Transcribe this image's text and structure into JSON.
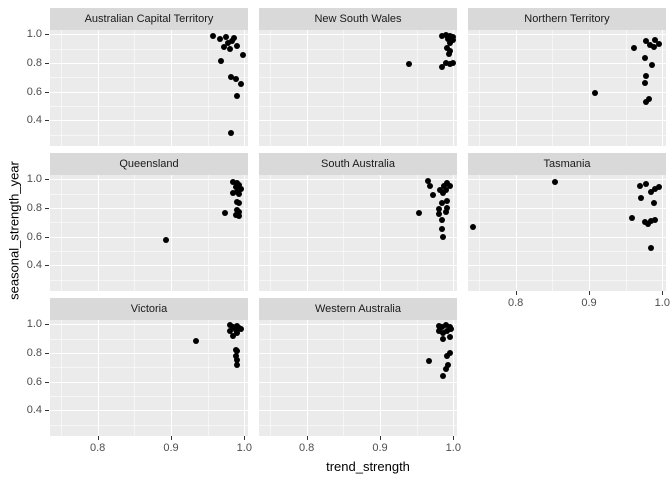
{
  "chart_data": {
    "type": "scatter",
    "title": "",
    "xlabel": "trend_strength",
    "ylabel": "seasonal_strength_year",
    "point_color": "#000000",
    "panel_background": "#ebebeb",
    "strip_background": "#d9d9d9",
    "gridline_color": "#ffffff",
    "grid": true,
    "legend_position": "none",
    "xlim": [
      0.735,
      1.005
    ],
    "ylim": [
      0.22,
      1.03
    ],
    "x_ticks": [
      {
        "value": 0.8,
        "label": "0.8"
      },
      {
        "value": 0.9,
        "label": "0.9"
      },
      {
        "value": 1.0,
        "label": "1.0"
      }
    ],
    "y_ticks": [
      {
        "value": 1.0,
        "label": "1.0"
      },
      {
        "value": 0.8,
        "label": "0.8"
      },
      {
        "value": 0.6,
        "label": "0.6"
      },
      {
        "value": 0.4,
        "label": "0.4"
      }
    ],
    "x_minor_ticks": [
      0.75,
      0.85,
      0.95
    ],
    "y_minor_ticks": [
      0.3,
      0.5,
      0.7,
      0.9
    ],
    "facets": [
      {
        "label": "Australian Capital Territory",
        "row": 0,
        "col": 0,
        "x_axis": false,
        "points": [
          [
            0.957,
            0.99
          ],
          [
            0.967,
            0.965
          ],
          [
            0.975,
            0.98
          ],
          [
            0.978,
            0.94
          ],
          [
            0.983,
            0.955
          ],
          [
            0.986,
            0.975
          ],
          [
            0.972,
            0.91
          ],
          [
            0.981,
            0.9
          ],
          [
            0.99,
            0.915
          ],
          [
            0.998,
            0.855
          ],
          [
            0.968,
            0.815
          ],
          [
            0.982,
            0.7
          ],
          [
            0.988,
            0.685
          ],
          [
            0.995,
            0.65
          ],
          [
            0.99,
            0.57
          ],
          [
            0.982,
            0.31
          ]
        ]
      },
      {
        "label": "New South Wales",
        "row": 0,
        "col": 1,
        "x_axis": false,
        "points": [
          [
            0.985,
            0.99
          ],
          [
            0.99,
            0.995
          ],
          [
            0.995,
            0.99
          ],
          [
            0.999,
            0.98
          ],
          [
            0.993,
            0.97
          ],
          [
            0.999,
            0.963
          ],
          [
            0.996,
            0.94
          ],
          [
            0.992,
            0.905
          ],
          [
            0.996,
            0.885
          ],
          [
            0.994,
            0.86
          ],
          [
            0.99,
            0.8
          ],
          [
            0.995,
            0.79
          ],
          [
            0.999,
            0.8
          ],
          [
            0.985,
            0.77
          ],
          [
            0.94,
            0.79
          ]
        ]
      },
      {
        "label": "Northern Territory",
        "row": 0,
        "col": 2,
        "x_axis": false,
        "points": [
          [
            0.961,
            0.905
          ],
          [
            0.978,
            0.955
          ],
          [
            0.983,
            0.928
          ],
          [
            0.99,
            0.96
          ],
          [
            0.996,
            0.933
          ],
          [
            0.989,
            0.911
          ],
          [
            0.976,
            0.836
          ],
          [
            0.986,
            0.785
          ],
          [
            0.978,
            0.708
          ],
          [
            0.976,
            0.66
          ],
          [
            0.908,
            0.587
          ],
          [
            0.978,
            0.527
          ],
          [
            0.982,
            0.549
          ]
        ]
      },
      {
        "label": "Queensland",
        "row": 1,
        "col": 0,
        "x_axis": false,
        "points": [
          [
            0.985,
            0.98
          ],
          [
            0.99,
            0.973
          ],
          [
            0.993,
            0.959
          ],
          [
            0.988,
            0.945
          ],
          [
            0.996,
            0.932
          ],
          [
            0.985,
            0.904
          ],
          [
            0.99,
            0.911
          ],
          [
            0.993,
            0.898
          ],
          [
            0.99,
            0.843
          ],
          [
            0.993,
            0.836
          ],
          [
            0.99,
            0.788
          ],
          [
            0.993,
            0.775
          ],
          [
            0.988,
            0.754
          ],
          [
            0.993,
            0.747
          ],
          [
            0.973,
            0.768
          ],
          [
            0.893,
            0.577
          ]
        ]
      },
      {
        "label": "South Australia",
        "row": 1,
        "col": 1,
        "x_axis": false,
        "points": [
          [
            0.965,
            0.985
          ],
          [
            0.968,
            0.955
          ],
          [
            0.982,
            0.923
          ],
          [
            0.987,
            0.955
          ],
          [
            0.991,
            0.974
          ],
          [
            0.995,
            0.95
          ],
          [
            0.99,
            0.927
          ],
          [
            0.986,
            0.905
          ],
          [
            0.972,
            0.893
          ],
          [
            0.984,
            0.836
          ],
          [
            0.991,
            0.847
          ],
          [
            0.981,
            0.795
          ],
          [
            0.991,
            0.802
          ],
          [
            0.953,
            0.767
          ],
          [
            0.981,
            0.76
          ],
          [
            0.99,
            0.771
          ],
          [
            0.985,
            0.716
          ],
          [
            0.984,
            0.652
          ],
          [
            0.986,
            0.594
          ]
        ]
      },
      {
        "label": "Tasmania",
        "row": 1,
        "col": 2,
        "x_axis": true,
        "points": [
          [
            0.854,
            0.98
          ],
          [
            0.969,
            0.952
          ],
          [
            0.978,
            0.966
          ],
          [
            0.985,
            0.911
          ],
          [
            0.99,
            0.932
          ],
          [
            0.995,
            0.945
          ],
          [
            0.971,
            0.87
          ],
          [
            0.988,
            0.836
          ],
          [
            0.742,
            0.666
          ],
          [
            0.958,
            0.727
          ],
          [
            0.976,
            0.7
          ],
          [
            0.981,
            0.686
          ],
          [
            0.985,
            0.707
          ],
          [
            0.99,
            0.713
          ],
          [
            0.985,
            0.522
          ]
        ]
      },
      {
        "label": "Victoria",
        "row": 2,
        "col": 0,
        "x_axis": true,
        "points": [
          [
            0.981,
            0.993
          ],
          [
            0.985,
            0.979
          ],
          [
            0.99,
            0.986
          ],
          [
            0.993,
            0.973
          ],
          [
            0.988,
            0.959
          ],
          [
            0.996,
            0.966
          ],
          [
            0.981,
            0.952
          ],
          [
            0.99,
            0.938
          ],
          [
            0.985,
            0.918
          ],
          [
            0.934,
            0.884
          ],
          [
            0.988,
            0.822
          ],
          [
            0.99,
            0.815
          ],
          [
            0.988,
            0.781
          ],
          [
            0.99,
            0.753
          ],
          [
            0.99,
            0.719
          ]
        ]
      },
      {
        "label": "Western Australia",
        "row": 2,
        "col": 1,
        "x_axis": true,
        "points": [
          [
            0.98,
            0.986
          ],
          [
            0.985,
            0.979
          ],
          [
            0.99,
            0.993
          ],
          [
            0.995,
            0.979
          ],
          [
            0.997,
            0.966
          ],
          [
            0.992,
            0.952
          ],
          [
            0.986,
            0.938
          ],
          [
            0.981,
            0.952
          ],
          [
            0.986,
            0.897
          ],
          [
            0.996,
            0.911
          ],
          [
            0.967,
            0.747
          ],
          [
            0.992,
            0.781
          ],
          [
            0.996,
            0.801
          ],
          [
            0.993,
            0.719
          ],
          [
            0.99,
            0.685
          ],
          [
            0.986,
            0.637
          ]
        ]
      }
    ]
  }
}
